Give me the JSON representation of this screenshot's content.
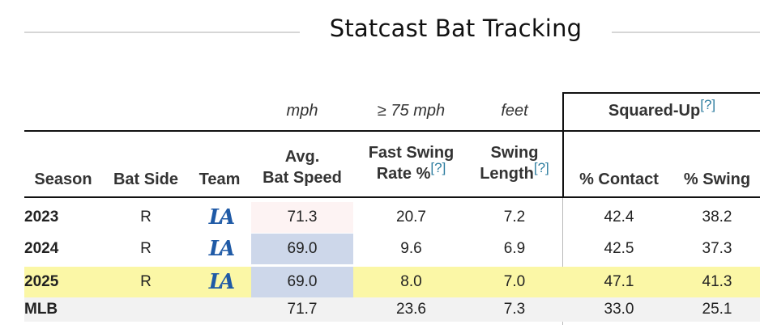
{
  "title": "Statcast Bat Tracking",
  "units": {
    "bat_speed": "mph",
    "fast_swing": "≥ 75 mph",
    "swing_length": "feet"
  },
  "squared_up": {
    "label": "Squared-Up",
    "help": "[?]"
  },
  "headers": {
    "season": "Season",
    "bat_side": "Bat Side",
    "team": "Team",
    "bat_speed_top": "Avg.",
    "bat_speed_bottom": "Bat Speed",
    "fast_swing_top": "Fast Swing",
    "fast_swing_bottom": "Rate %",
    "fast_swing_help": "[?]",
    "swing_length_top": "Swing",
    "swing_length_bottom": "Length",
    "swing_length_help": "[?]",
    "contact": "% Contact",
    "swing": "% Swing"
  },
  "rows": [
    {
      "season": "2023",
      "bat_side": "R",
      "team_logo": "LA",
      "bat_speed": "71.3",
      "fast_swing": "20.7",
      "swing_length": "7.2",
      "contact": "42.4",
      "swing": "38.2",
      "speed_color": "#fdf3f3"
    },
    {
      "season": "2024",
      "bat_side": "R",
      "team_logo": "LA",
      "bat_speed": "69.0",
      "fast_swing": "9.6",
      "swing_length": "6.9",
      "contact": "42.5",
      "swing": "37.3",
      "speed_color": "#cdd7ea"
    },
    {
      "season": "2025",
      "bat_side": "R",
      "team_logo": "LA",
      "bat_speed": "69.0",
      "fast_swing": "8.0",
      "swing_length": "7.0",
      "contact": "47.1",
      "swing": "41.3",
      "speed_color": "#cdd7ea"
    }
  ],
  "mlb": {
    "season": "MLB",
    "bat_speed": "71.7",
    "fast_swing": "23.6",
    "swing_length": "7.3",
    "contact": "33.0",
    "swing": "25.1"
  },
  "colors": {
    "highlight": "#fbf7a6",
    "logo_blue": "#1f5aa6",
    "help_link": "#2f7ea0"
  }
}
